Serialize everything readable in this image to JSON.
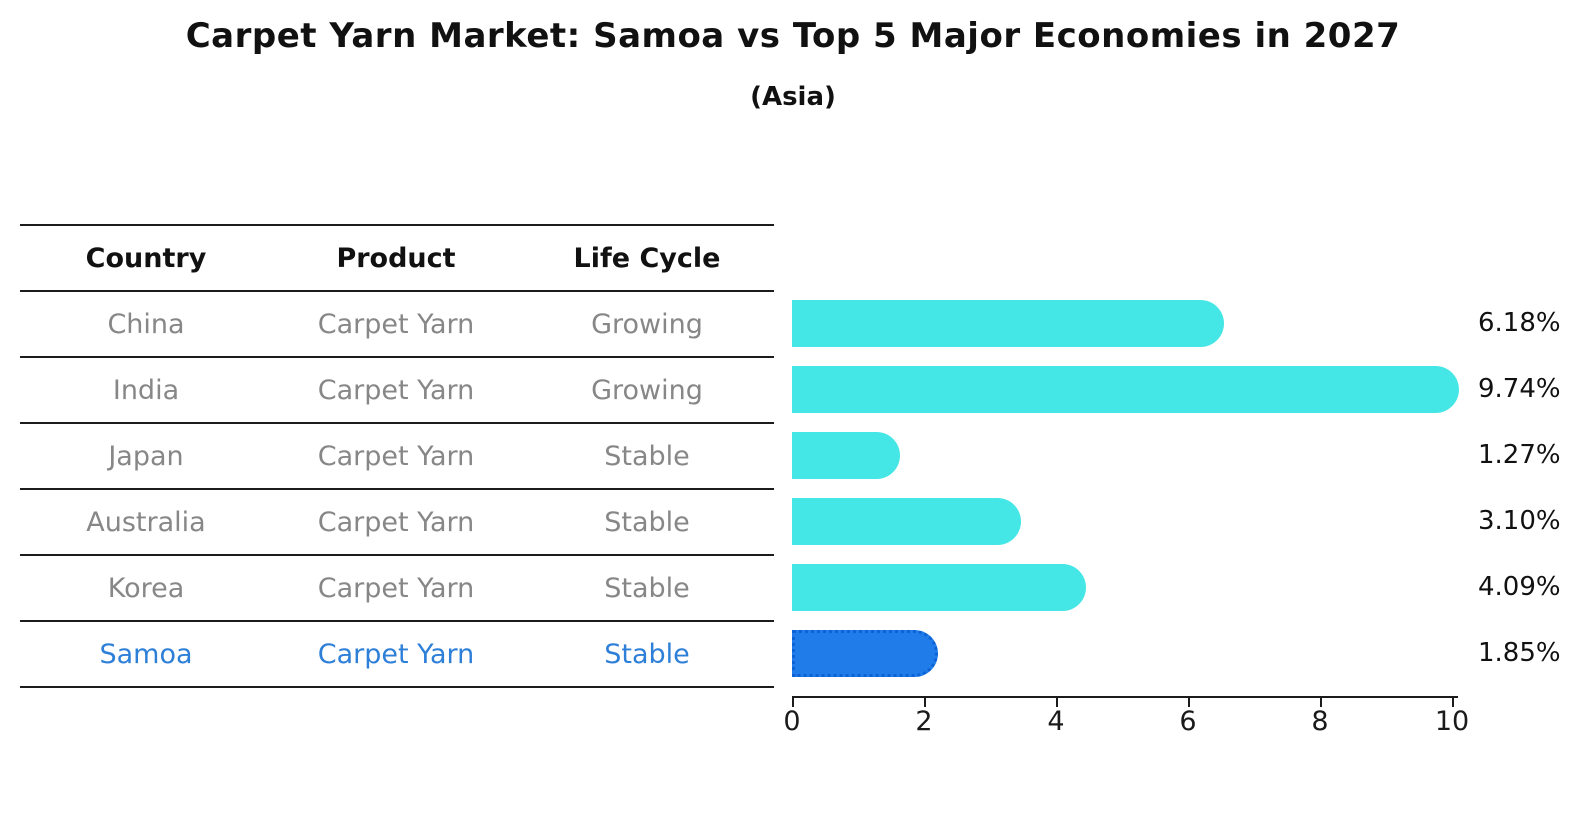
{
  "header": {
    "title": "Carpet Yarn Market: Samoa vs Top 5 Major Economies in 2027",
    "subtitle": "(Asia)"
  },
  "table": {
    "columns": [
      "Country",
      "Product",
      "Life Cycle"
    ],
    "rows": [
      {
        "country": "China",
        "product": "Carpet Yarn",
        "life_cycle": "Growing",
        "highlight": false
      },
      {
        "country": "India",
        "product": "Carpet Yarn",
        "life_cycle": "Growing",
        "highlight": false
      },
      {
        "country": "Japan",
        "product": "Carpet Yarn",
        "life_cycle": "Stable",
        "highlight": false
      },
      {
        "country": "Australia",
        "product": "Carpet Yarn",
        "life_cycle": "Stable",
        "highlight": false
      },
      {
        "country": "Korea",
        "product": "Carpet Yarn",
        "life_cycle": "Stable",
        "highlight": false
      },
      {
        "country": "Samoa",
        "product": "Carpet Yarn",
        "life_cycle": "Stable",
        "highlight": true
      }
    ]
  },
  "chart_data": {
    "type": "bar",
    "orientation": "horizontal",
    "title": "Carpet Yarn Market: Samoa vs Top 5 Major Economies in 2027",
    "subtitle": "(Asia)",
    "categories": [
      "China",
      "India",
      "Japan",
      "Australia",
      "Korea",
      "Samoa"
    ],
    "values": [
      6.18,
      9.74,
      1.27,
      3.1,
      4.09,
      1.85
    ],
    "value_labels": [
      "6.18%",
      "9.74%",
      "1.27%",
      "3.10%",
      "4.09%",
      "1.85%"
    ],
    "xlim": [
      0,
      10
    ],
    "x_ticks": [
      "0",
      "2",
      "4",
      "6",
      "8",
      "10"
    ],
    "x_tick_values": [
      0,
      2,
      4,
      6,
      8,
      10
    ],
    "grid": false,
    "legend": false,
    "highlight_index": 5,
    "bar_color": "#45e6e6",
    "highlight_color": "#1f7ce8",
    "highlight_border_color": "#0d62d8",
    "highlight_text_color": "#2e7fd8",
    "row_text_color": "#878787"
  }
}
